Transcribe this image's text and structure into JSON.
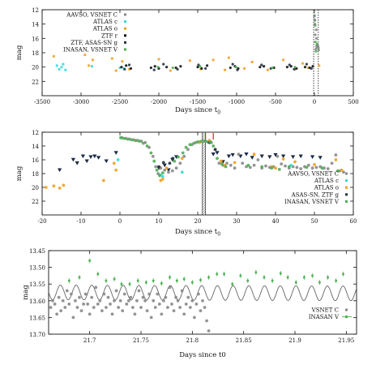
{
  "chart_data": [
    {
      "type": "scatter",
      "xlabel_main": "Days since t",
      "xlabel_sub": "0",
      "ylabel": "mag",
      "xlim": [
        -3500,
        500
      ],
      "ylim": [
        24,
        12
      ],
      "y_reversed": true,
      "grid": false,
      "legend_placement": "top-left",
      "x_ticks": [
        "-3500",
        "-3000",
        "-2500",
        "-2000",
        "-1500",
        "-1000",
        "-500",
        "0",
        "500"
      ],
      "x_tick_values": [
        -3500,
        -3000,
        -2500,
        -2000,
        -1500,
        -1000,
        -500,
        0,
        500
      ],
      "y_ticks": [
        "12",
        "14",
        "16",
        "18",
        "20",
        "22"
      ],
      "y_tick_values": [
        12,
        14,
        16,
        18,
        20,
        22
      ],
      "vlines_dotted": [
        -10,
        50
      ],
      "legend": [
        {
          "label": "AAVSO, VSNET C",
          "color": "#888888"
        },
        {
          "label": "ATLAS c",
          "color": "#38d8d8"
        },
        {
          "label": "ATLAS o",
          "color": "#f0a020"
        },
        {
          "label": "ZTF r",
          "color": "#111111"
        },
        {
          "label": "ZTF, ASAS-SN g",
          "color": "#223344"
        },
        {
          "label": "INASAN, VSNET V",
          "color": "#4caf50"
        }
      ],
      "series": [
        {
          "color": "#38d8d8",
          "x": [
            -3310,
            -3280,
            -3250,
            -3230,
            -3200,
            -2860,
            -2500,
            -2450
          ],
          "y": [
            19.8,
            20.3,
            20.0,
            19.6,
            20.4,
            19.9,
            20.1,
            20.2
          ]
        },
        {
          "color": "#f0a020",
          "x": [
            -3350,
            -2950,
            -2900,
            -2850,
            -2600,
            -2550,
            -2470,
            -2380,
            -2000,
            -1850,
            -1600,
            -1460,
            -1300,
            -1150,
            -1100,
            -900,
            -800,
            -600,
            -400,
            -250,
            -150,
            -80,
            60
          ],
          "y": [
            18.5,
            18.3,
            19.8,
            19.0,
            18.8,
            20.5,
            19.2,
            20.3,
            18.9,
            20.5,
            19.1,
            20.3,
            19.0,
            20.4,
            18.7,
            20.2,
            19.3,
            20.4,
            19.0,
            20.3,
            19.5,
            20.1,
            19.8
          ]
        },
        {
          "color": "#111111",
          "x": [
            -2480,
            -2420,
            -2360,
            -2100,
            -2050,
            -2000,
            -1900,
            -1780,
            -1720,
            -1500,
            -1450,
            -1380,
            -1080,
            -1020,
            -980,
            -700,
            -650,
            -520,
            -350,
            -300,
            -230,
            -120,
            -60,
            -20
          ],
          "y": [
            20.0,
            19.8,
            20.2,
            20.1,
            19.9,
            20.2,
            20.0,
            20.1,
            19.9,
            20.0,
            20.2,
            19.8,
            20.1,
            19.9,
            20.2,
            20.0,
            19.9,
            20.1,
            20.0,
            19.9,
            20.2,
            20.0,
            20.1,
            19.9
          ]
        },
        {
          "color": "#223344",
          "x": [
            -2440,
            -2380,
            -2060,
            -1940,
            -1760,
            -1490,
            -1400,
            -1050,
            -990,
            -680,
            -560,
            -320,
            -260,
            -100,
            -40
          ],
          "y": [
            20.3,
            19.7,
            20.4,
            19.6,
            20.3,
            19.7,
            20.2,
            19.6,
            20.4,
            19.7,
            20.2,
            19.7,
            20.3,
            19.6,
            20.2
          ]
        },
        {
          "color": "#4caf50",
          "x": [
            -2010,
            -1820,
            -1470,
            -1010,
            -540,
            -250,
            2,
            6,
            10,
            14,
            20,
            28,
            36,
            44,
            50
          ],
          "y": [
            20.0,
            20.1,
            19.9,
            20.0,
            20.1,
            20.0,
            12.8,
            13.5,
            14.2,
            16.5,
            17.8,
            17.0,
            16.8,
            17.1,
            17.3
          ]
        },
        {
          "color": "#888888",
          "x": [
            0,
            4,
            8,
            12,
            18,
            22,
            26,
            30,
            40,
            48,
            55
          ],
          "y": [
            12.9,
            13.4,
            14.0,
            15.5,
            17.5,
            14.8,
            16.0,
            17.2,
            16.9,
            17.2,
            17.6
          ]
        }
      ]
    },
    {
      "type": "scatter",
      "xlabel_main": "Days since t",
      "xlabel_sub": "0",
      "ylabel": "mag",
      "xlim": [
        -20,
        60
      ],
      "ylim": [
        24,
        12
      ],
      "y_reversed": true,
      "grid": false,
      "legend_placement": "bottom-right",
      "x_ticks": [
        "-20",
        "-10",
        "0",
        "10",
        "20",
        "30",
        "40",
        "50",
        "60"
      ],
      "x_tick_values": [
        -20,
        -10,
        0,
        10,
        20,
        30,
        40,
        50,
        60
      ],
      "y_ticks": [
        "12",
        "14",
        "16",
        "18",
        "20",
        "22"
      ],
      "y_tick_values": [
        12,
        14,
        16,
        18,
        20,
        22
      ],
      "hatched_band": [
        21.2,
        22.0
      ],
      "red_markers": [
        22.0,
        24.0
      ],
      "legend": [
        {
          "label": "AAVSO, VSNET C",
          "color": "#888888"
        },
        {
          "label": "ATLAS c",
          "color": "#38d8d8"
        },
        {
          "label": "ATLAS o",
          "color": "#f0a020"
        },
        {
          "label": "ASAS-SN, ZTF g",
          "color": "#223344"
        },
        {
          "label": "INASAN, VSNET V",
          "color": "#4caf50"
        }
      ],
      "triangles": {
        "color": "#1a2a44",
        "x": [
          -15.5,
          -12,
          -11,
          -9.5,
          -8.5,
          -7.5,
          -6.5,
          -5.5,
          -3.5,
          -1,
          10,
          11.5,
          12.5,
          13.5,
          14.5,
          24,
          25,
          26.5,
          28,
          29,
          31,
          32.5,
          34,
          36.5,
          38.5,
          40,
          42,
          44.5,
          46.5,
          49.5,
          51.5
        ],
        "y": [
          17.5,
          16.0,
          16.5,
          15.5,
          16.2,
          15.6,
          15.5,
          15.7,
          16.2,
          15.0,
          17.2,
          16.8,
          17.5,
          16.0,
          15.6,
          15.2,
          15.0,
          16.3,
          15.5,
          15.3,
          15.5,
          15.2,
          15.7,
          15.5,
          15.6,
          15.3,
          15.5,
          15.6,
          15.5,
          15.6,
          15.7
        ]
      },
      "series": [
        {
          "name": "AAVSO, VSNET C",
          "color": "#888888",
          "x": [
            0.5,
            1.5,
            2.5,
            3.5,
            4.5,
            5.5,
            6.5,
            7.5,
            8.5,
            9.2,
            9.8,
            10.5,
            11.5,
            12.5,
            13.5,
            14.5,
            15.5,
            16.5,
            17.5,
            18.5,
            19.5,
            20.5,
            21.5,
            22.5,
            23.5,
            24.5,
            25.5,
            26.5,
            27.5,
            28.5,
            29.5,
            30.5,
            31.5,
            32.5,
            33.5,
            34.5,
            35.5,
            36.5,
            37.5,
            38.5,
            39.5,
            40.5,
            41.5,
            42.5,
            43.5,
            44.5,
            45.5,
            46.5,
            47.5,
            48.5,
            49.5,
            50.5,
            51.5,
            52.5,
            53.5,
            54.5,
            55.5,
            56.5,
            57.5
          ],
          "y": [
            12.8,
            12.9,
            13.0,
            13.1,
            13.2,
            13.3,
            13.5,
            14.2,
            15.5,
            17.0,
            18.0,
            17.2,
            17.5,
            17.8,
            17.6,
            17.2,
            16.5,
            15.5,
            14.5,
            13.8,
            13.5,
            13.4,
            13.3,
            13.4,
            13.5,
            14.5,
            16.5,
            16.8,
            16.5,
            16.8,
            17.2,
            15.2,
            16.5,
            17.0,
            17.1,
            16.8,
            16.0,
            17.2,
            16.9,
            17.1,
            17.0,
            15.5,
            16.6,
            16.9,
            17.2,
            17.0,
            17.1,
            17.3,
            17.0,
            16.8,
            17.2,
            17.1,
            17.0,
            17.2,
            17.3,
            16.5,
            15.3,
            17.6,
            17.8
          ]
        },
        {
          "name": "ATLAS c",
          "color": "#38d8d8",
          "x": [
            -0.5,
            10.4,
            11.0,
            16.0,
            44.0
          ],
          "y": [
            16.0,
            18.2,
            18.4,
            17.8,
            16.8
          ]
        },
        {
          "name": "ATLAS o",
          "color": "#f0a020",
          "x": [
            -19,
            -17,
            -15.5,
            -14.5,
            -4.2,
            -1.5,
            -1.0,
            10.5,
            11.0,
            12.0,
            16.0,
            20.5,
            23.0,
            26.0,
            27.0,
            29.5,
            34.5,
            39.0,
            40.0,
            42.0,
            45.0,
            50.0,
            55.5,
            57.0
          ],
          "y": [
            20.0,
            19.8,
            20.1,
            19.7,
            19.0,
            16.5,
            17.5,
            19.0,
            18.8,
            17.2,
            15.8,
            13.5,
            13.2,
            16.2,
            16.8,
            16.4,
            15.2,
            17.0,
            17.2,
            15.9,
            16.3,
            16.7,
            16.0,
            17.5
          ]
        },
        {
          "name": "ASAS-SN, ZTF g",
          "color": "#223344",
          "x": [
            10.0,
            11.2,
            12.8,
            13.6,
            23.0,
            24.5
          ],
          "y": [
            17.0,
            16.4,
            16.5,
            15.8,
            13.5,
            14.5
          ]
        },
        {
          "name": "INASAN, VSNET V",
          "color": "#4caf50",
          "x": [
            0.2,
            1.0,
            2.0,
            3.0,
            4.0,
            5.0,
            6.0,
            7.0,
            8.0,
            8.8,
            9.5,
            10.2,
            11.0,
            14.0,
            15.0,
            16.2,
            17.0,
            18.0,
            19.0,
            20.0,
            21.0,
            22.0,
            23.2,
            24.0,
            25.0,
            26.2,
            27.2,
            33.0,
            36.5,
            39.0,
            41.0,
            43.5,
            48.0,
            52.0,
            56.0
          ],
          "y": [
            12.8,
            12.9,
            13.0,
            13.1,
            13.2,
            13.3,
            13.6,
            14.0,
            15.0,
            16.2,
            17.5,
            18.3,
            17.9,
            16.2,
            15.6,
            15.0,
            14.2,
            13.8,
            13.6,
            13.4,
            13.3,
            13.3,
            13.4,
            14.0,
            15.8,
            16.6,
            17.0,
            16.8,
            17.0,
            17.2,
            17.4,
            17.0,
            17.1,
            17.2,
            17.6
          ]
        }
      ]
    },
    {
      "type": "scatter",
      "xlabel": "Days since t0",
      "ylabel": "mag",
      "xlim": [
        21.66,
        21.96
      ],
      "ylim": [
        13.7,
        13.45
      ],
      "y_reversed": true,
      "grid": false,
      "legend_placement": "bottom-right",
      "x_ticks": [
        "21.7",
        "21.75",
        "21.8",
        "21.85",
        "21.9",
        "21.95"
      ],
      "x_tick_values": [
        21.7,
        21.75,
        21.8,
        21.85,
        21.9,
        21.95
      ],
      "y_ticks": [
        "13.45",
        "13.50",
        "13.55",
        "13.60",
        "13.65",
        "13.70"
      ],
      "y_tick_values": [
        13.45,
        13.5,
        13.55,
        13.6,
        13.65,
        13.7
      ],
      "legend": [
        {
          "label": "VSNET C",
          "color": "#888888"
        },
        {
          "label": "INASAN V",
          "color": "#4caf50"
        }
      ],
      "model_curve": {
        "color": "#555555",
        "period": 0.0153,
        "mean": 13.575,
        "amplitude": 0.022,
        "drift_per_day": 0.1
      },
      "series": [
        {
          "name": "VSNET C",
          "color": "#888888",
          "x": [
            21.662,
            21.664,
            21.666,
            21.668,
            21.67,
            21.672,
            21.674,
            21.676,
            21.678,
            21.68,
            21.682,
            21.684,
            21.686,
            21.688,
            21.69,
            21.692,
            21.694,
            21.696,
            21.698,
            21.7,
            21.702,
            21.704,
            21.706,
            21.708,
            21.71,
            21.712,
            21.714,
            21.716,
            21.718,
            21.72,
            21.722,
            21.724,
            21.726,
            21.728,
            21.73,
            21.732,
            21.734,
            21.736,
            21.738,
            21.74,
            21.742,
            21.744,
            21.746,
            21.748,
            21.75,
            21.752,
            21.754,
            21.756,
            21.758,
            21.76,
            21.762,
            21.764,
            21.766,
            21.768,
            21.77,
            21.772,
            21.774,
            21.776,
            21.778,
            21.78,
            21.782,
            21.784,
            21.786,
            21.788,
            21.79,
            21.792,
            21.794,
            21.796,
            21.798,
            21.8,
            21.802,
            21.804,
            21.806,
            21.808,
            21.81,
            21.812,
            21.814,
            21.816
          ],
          "y": [
            13.62,
            13.6,
            13.61,
            13.64,
            13.59,
            13.63,
            13.6,
            13.62,
            13.57,
            13.61,
            13.58,
            13.65,
            13.6,
            13.62,
            13.59,
            13.63,
            13.61,
            13.58,
            13.61,
            13.64,
            13.59,
            13.62,
            13.56,
            13.61,
            13.6,
            13.63,
            13.58,
            13.62,
            13.59,
            13.61,
            13.64,
            13.6,
            13.57,
            13.62,
            13.6,
            13.63,
            13.58,
            13.61,
            13.6,
            13.59,
            13.62,
            13.64,
            13.6,
            13.57,
            13.62,
            13.59,
            13.6,
            13.63,
            13.58,
            13.65,
            13.6,
            13.62,
            13.58,
            13.61,
            13.64,
            13.6,
            13.59,
            13.62,
            13.56,
            13.61,
            13.63,
            13.59,
            13.6,
            13.62,
            13.57,
            13.64,
            13.61,
            13.59,
            13.62,
            13.6,
            13.65,
            13.61,
            13.58,
            13.63,
            13.6,
            13.62,
            13.66,
            13.69
          ]
        },
        {
          "name": "INASAN V",
          "color": "#4caf50",
          "x": [
            21.68,
            21.69,
            21.7,
            21.708,
            21.716,
            21.724,
            21.731,
            21.739,
            21.747,
            21.755,
            21.762,
            21.77,
            21.778,
            21.785,
            21.792,
            21.8,
            21.808,
            21.816,
            21.824,
            21.831,
            21.839,
            21.847,
            21.854,
            21.862,
            21.87,
            21.878,
            21.886,
            21.893,
            21.901,
            21.909,
            21.917,
            21.924,
            21.932,
            21.94,
            21.947
          ],
          "y": [
            13.54,
            13.53,
            13.48,
            13.52,
            13.54,
            13.535,
            13.55,
            13.55,
            13.54,
            13.545,
            13.54,
            13.548,
            13.53,
            13.54,
            13.535,
            13.545,
            13.538,
            13.53,
            13.52,
            13.52,
            13.55,
            13.525,
            13.54,
            13.515,
            13.53,
            13.54,
            13.518,
            13.53,
            13.545,
            13.53,
            13.525,
            13.545,
            13.53,
            13.54,
            13.52
          ]
        }
      ]
    }
  ]
}
